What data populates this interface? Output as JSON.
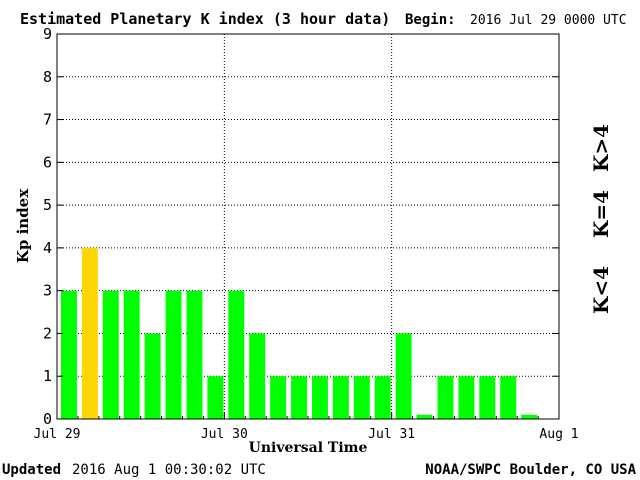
{
  "header": {
    "title": "Estimated Planetary K index (3 hour data)",
    "begin_label": "Begin:",
    "begin_value": "2016 Jul 29 0000 UTC"
  },
  "footer": {
    "updated_label": "Updated",
    "updated_value": "2016 Aug  1 00:30:02 UTC",
    "source": "NOAA/SWPC Boulder, CO USA"
  },
  "legend": {
    "gt4": {
      "label": "K>4",
      "color": "#ff3b1f"
    },
    "eq4": {
      "label": "K=4",
      "color": "#ffd700"
    },
    "lt4": {
      "label": "K<4",
      "color": "#00ff00"
    }
  },
  "chart_data": {
    "type": "bar",
    "title": "Estimated Planetary K index (3 hour data)",
    "xlabel": "Universal Time",
    "ylabel": "Kp index",
    "ylim": [
      0,
      9
    ],
    "yticks": [
      0,
      1,
      2,
      3,
      4,
      5,
      6,
      7,
      8,
      9
    ],
    "xtick_labels": [
      "Jul 29",
      "Jul 30",
      "Jul 31",
      "Aug 1"
    ],
    "grid": true,
    "interval_hours": 3,
    "series": [
      {
        "values": [
          3,
          4,
          3,
          3,
          2,
          3,
          3,
          1,
          3,
          2,
          1,
          1,
          1,
          1,
          1,
          1,
          2,
          0.1,
          1,
          1,
          1,
          1,
          0.1
        ]
      }
    ]
  }
}
